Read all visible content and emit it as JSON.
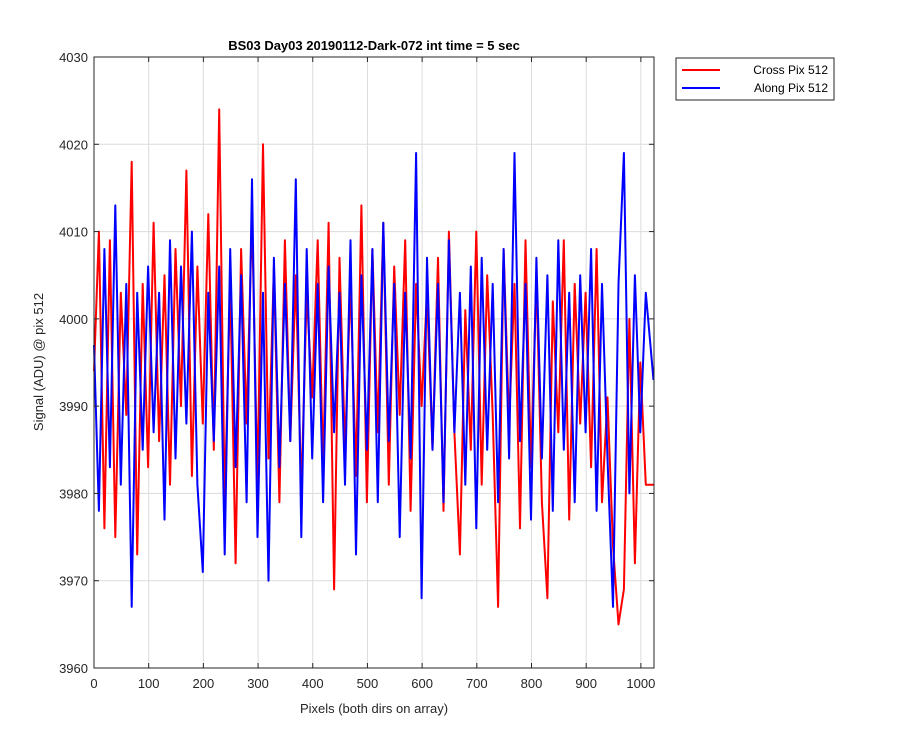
{
  "chart_data": {
    "type": "line",
    "title": "BS03 Day03 20190112-Dark-072 int time = 5 sec",
    "xlabel": "Pixels (both dirs on array)",
    "ylabel": "Signal (ADU) @ pix 512",
    "xlim": [
      0,
      1024
    ],
    "ylim": [
      3960,
      4030
    ],
    "xticks": [
      0,
      100,
      200,
      300,
      400,
      500,
      600,
      700,
      800,
      900,
      1000
    ],
    "yticks": [
      3960,
      3970,
      3980,
      3990,
      4000,
      4010,
      4020,
      4030
    ],
    "grid": true,
    "legend_position": "outside-top-right",
    "series": [
      {
        "name": "Cross Pix 512",
        "color": "#ff0000",
        "x": [
          0,
          9,
          19,
          29,
          39,
          49,
          59,
          69,
          79,
          89,
          99,
          109,
          119,
          129,
          139,
          149,
          159,
          169,
          179,
          189,
          199,
          209,
          219,
          229,
          239,
          249,
          259,
          269,
          279,
          289,
          299,
          309,
          319,
          329,
          339,
          349,
          359,
          369,
          379,
          389,
          399,
          409,
          419,
          429,
          439,
          449,
          459,
          469,
          479,
          489,
          499,
          509,
          519,
          529,
          539,
          549,
          559,
          569,
          579,
          589,
          599,
          609,
          619,
          629,
          639,
          649,
          659,
          669,
          679,
          689,
          699,
          709,
          719,
          729,
          739,
          749,
          759,
          769,
          779,
          789,
          799,
          809,
          819,
          829,
          839,
          849,
          859,
          869,
          879,
          889,
          899,
          909,
          919,
          929,
          939,
          949,
          959,
          969,
          979,
          989,
          999,
          1009,
          1023
        ],
        "y": [
          3994,
          4010,
          3976,
          4009,
          3975,
          4003,
          3989,
          4018,
          3973,
          4004,
          3983,
          4011,
          3986,
          4005,
          3981,
          4008,
          3990,
          4017,
          3982,
          4006,
          3988,
          4012,
          3985,
          4024,
          3979,
          4004,
          3972,
          4008,
          3988,
          4012,
          3981,
          4020,
          3984,
          4006,
          3979,
          4009,
          3986,
          4005,
          3980,
          4003,
          3991,
          4009,
          3983,
          4011,
          3969,
          4007,
          3985,
          4004,
          3982,
          4013,
          3979,
          4008,
          3987,
          4011,
          3981,
          4006,
          3989,
          4009,
          3978,
          4004,
          3990,
          4003,
          3985,
          4007,
          3978,
          4010,
          3987,
          3973,
          4001,
          3985,
          4010,
          3981,
          4005,
          3989,
          3967,
          4008,
          3988,
          4004,
          3976,
          4009,
          3983,
          4005,
          3979,
          3968,
          4002,
          3987,
          4009,
          3977,
          4004,
          3988,
          4003,
          3983,
          4008,
          3979,
          3991,
          3974,
          3965,
          3969,
          4000,
          3972,
          3995,
          3981,
          3981
        ]
      },
      {
        "name": "Along Pix 512",
        "color": "#0000ff",
        "x": [
          0,
          9,
          19,
          29,
          39,
          49,
          59,
          69,
          79,
          89,
          99,
          109,
          119,
          129,
          139,
          149,
          159,
          169,
          179,
          189,
          199,
          209,
          219,
          229,
          239,
          249,
          259,
          269,
          279,
          289,
          299,
          309,
          319,
          329,
          339,
          349,
          359,
          369,
          379,
          389,
          399,
          409,
          419,
          429,
          439,
          449,
          459,
          469,
          479,
          489,
          499,
          509,
          519,
          529,
          539,
          549,
          559,
          569,
          579,
          589,
          599,
          609,
          619,
          629,
          639,
          649,
          659,
          669,
          679,
          689,
          699,
          709,
          719,
          729,
          739,
          749,
          759,
          769,
          779,
          789,
          799,
          809,
          819,
          829,
          839,
          849,
          859,
          869,
          879,
          889,
          899,
          909,
          919,
          929,
          939,
          949,
          959,
          969,
          979,
          989,
          999,
          1009,
          1023
        ],
        "y": [
          3997,
          3978,
          4008,
          3983,
          4013,
          3981,
          4004,
          3967,
          4003,
          3985,
          4006,
          3987,
          4003,
          3977,
          4009,
          3984,
          4006,
          3988,
          4010,
          3981,
          3971,
          4003,
          3986,
          4006,
          3973,
          4008,
          3983,
          4005,
          3979,
          4016,
          3975,
          4003,
          3970,
          4007,
          3983,
          4004,
          3986,
          4016,
          3975,
          4008,
          3984,
          4004,
          3979,
          4006,
          3987,
          4003,
          3981,
          4009,
          3973,
          4005,
          3985,
          4008,
          3979,
          4011,
          3986,
          4004,
          3975,
          4003,
          3984,
          4019,
          3968,
          4007,
          3985,
          4004,
          3979,
          4009,
          3987,
          4003,
          3981,
          4006,
          3976,
          4007,
          3985,
          4004,
          3979,
          4008,
          3984,
          4019,
          3986,
          4004,
          3977,
          4007,
          3984,
          4005,
          3978,
          4009,
          3985,
          4003,
          3979,
          4005,
          3987,
          4008,
          3978,
          4004,
          3984,
          3967,
          4004,
          4019,
          3980,
          4005,
          3987,
          4003,
          3993
        ]
      }
    ]
  }
}
